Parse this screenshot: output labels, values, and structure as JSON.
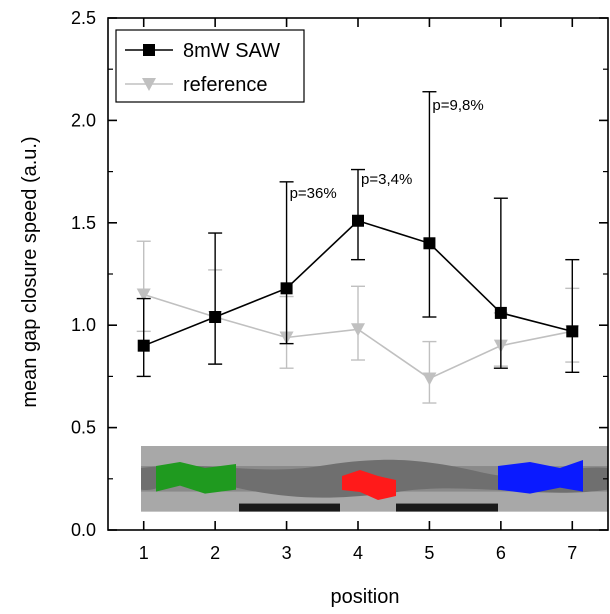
{
  "chart_data": {
    "type": "line",
    "title": "",
    "xlabel": "position",
    "ylabel": "mean gap closure speed (a.u.)",
    "xlim": [
      0.5,
      7.5
    ],
    "ylim": [
      0.0,
      2.5
    ],
    "xticks": [
      1,
      2,
      3,
      4,
      5,
      6,
      7
    ],
    "yticks": [
      0.0,
      0.5,
      1.0,
      1.5,
      2.0,
      2.5
    ],
    "grid": false,
    "legend_position": "top-left",
    "x": [
      1,
      2,
      3,
      4,
      5,
      6,
      7
    ],
    "series": [
      {
        "name": "8mW SAW",
        "color": "#000000",
        "marker": "square",
        "values": [
          0.9,
          1.04,
          1.18,
          1.51,
          1.4,
          1.06,
          0.97
        ],
        "error_high": [
          1.13,
          1.45,
          1.7,
          1.76,
          2.14,
          1.62,
          1.32
        ],
        "error_low": [
          0.75,
          0.81,
          0.91,
          1.32,
          1.04,
          0.79,
          0.77
        ]
      },
      {
        "name": "reference",
        "color": "#c0c0c0",
        "marker": "triangle-down",
        "values": [
          1.15,
          1.04,
          0.94,
          0.98,
          0.74,
          0.9,
          0.97
        ],
        "error_high": [
          1.41,
          1.27,
          1.14,
          1.19,
          0.92,
          1.06,
          1.18
        ],
        "error_low": [
          0.97,
          0.81,
          0.79,
          0.83,
          0.62,
          0.8,
          0.82
        ]
      }
    ],
    "annotations": [
      {
        "text": "p=36%",
        "x": 3,
        "y": 1.62
      },
      {
        "text": "p=3,4%",
        "x": 4,
        "y": 1.69
      },
      {
        "text": "p=9,8%",
        "x": 5,
        "y": 2.05
      }
    ],
    "inset_image": {
      "description_colors": [
        "#1f9a1f",
        "#ff1a1a",
        "#0a1aff"
      ],
      "bar_color": "#1a1a1a"
    }
  }
}
